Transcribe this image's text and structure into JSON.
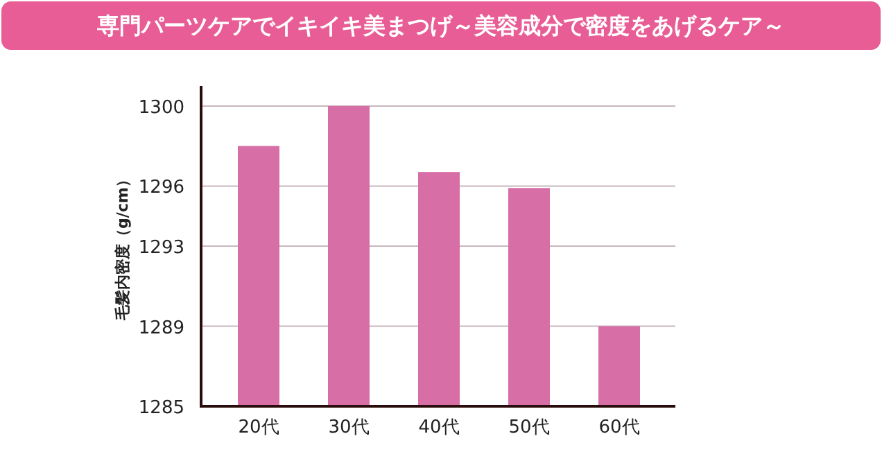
{
  "chart_data": {
    "type": "bar",
    "title": "専門パーツケアでイキイキ美まつげ～美容成分で密度をあげるケア～",
    "ylabel": "毛髪内密度（g/cm）",
    "categories": [
      "20代",
      "30代",
      "40代",
      "50代",
      "60代"
    ],
    "values": [
      1298,
      1300,
      1296.7,
      1295.9,
      1289
    ],
    "color": "#d76ea6",
    "ylim": [
      1285,
      1301
    ],
    "yticks": [
      1285,
      1289,
      1293,
      1296,
      1300
    ],
    "grid": "y"
  }
}
